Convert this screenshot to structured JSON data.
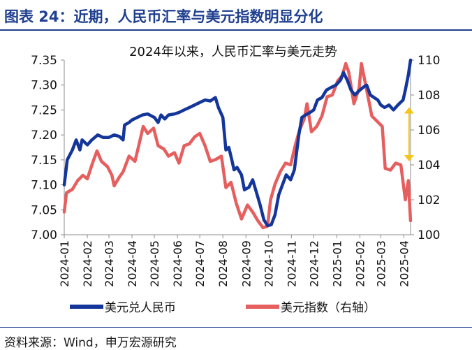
{
  "figure": {
    "title": "图表 24：近期，人民币汇率与美元指数明显分化",
    "source": "资料来源：Wind，申万宏源研究"
  },
  "chart_data": {
    "type": "line",
    "title": "2024年以来，人民币汇率与美元走势",
    "x_ticks": [
      "2024-01",
      "2024-02",
      "2024-03",
      "2024-04",
      "2024-05",
      "2024-06",
      "2024-07",
      "2024-08",
      "2024-09",
      "2024-10",
      "2024-11",
      "2024-12",
      "2025-01",
      "2025-02",
      "2025-03",
      "2025-04"
    ],
    "x_range": [
      "2024-01-01",
      "2025-04-10"
    ],
    "ylim_left": [
      7.0,
      7.35
    ],
    "yticks_left": [
      "7.00",
      "7.05",
      "7.10",
      "7.15",
      "7.20",
      "7.25",
      "7.30",
      "7.35"
    ],
    "ylim_right": [
      100,
      110
    ],
    "yticks_right": [
      "100",
      "102",
      "104",
      "106",
      "108",
      "110"
    ],
    "legend_position": "bottom",
    "annotation": {
      "type": "double-arrow",
      "date": "2025-04-08",
      "from": 104.2,
      "to": 107.3,
      "color": "#f5c518"
    },
    "series": [
      {
        "name": "美元兑人民币",
        "axis": "left",
        "color": "#14369a",
        "points": [
          [
            "2024-01-01",
            7.1
          ],
          [
            "2024-01-05",
            7.15
          ],
          [
            "2024-01-12",
            7.17
          ],
          [
            "2024-01-17",
            7.19
          ],
          [
            "2024-01-22",
            7.17
          ],
          [
            "2024-01-25",
            7.19
          ],
          [
            "2024-02-01",
            7.18
          ],
          [
            "2024-02-07",
            7.19
          ],
          [
            "2024-02-15",
            7.2
          ],
          [
            "2024-02-22",
            7.195
          ],
          [
            "2024-03-01",
            7.195
          ],
          [
            "2024-03-08",
            7.2
          ],
          [
            "2024-03-15",
            7.197
          ],
          [
            "2024-03-20",
            7.19
          ],
          [
            "2024-03-22",
            7.22
          ],
          [
            "2024-03-28",
            7.225
          ],
          [
            "2024-04-01",
            7.23
          ],
          [
            "2024-04-08",
            7.235
          ],
          [
            "2024-04-15",
            7.24
          ],
          [
            "2024-04-22",
            7.242
          ],
          [
            "2024-05-01",
            7.235
          ],
          [
            "2024-05-06",
            7.225
          ],
          [
            "2024-05-10",
            7.24
          ],
          [
            "2024-05-15",
            7.232
          ],
          [
            "2024-05-20",
            7.24
          ],
          [
            "2024-05-28",
            7.242
          ],
          [
            "2024-06-03",
            7.245
          ],
          [
            "2024-06-10",
            7.25
          ],
          [
            "2024-06-17",
            7.255
          ],
          [
            "2024-06-24",
            7.26
          ],
          [
            "2024-07-01",
            7.265
          ],
          [
            "2024-07-08",
            7.27
          ],
          [
            "2024-07-15",
            7.268
          ],
          [
            "2024-07-22",
            7.275
          ],
          [
            "2024-07-26",
            7.255
          ],
          [
            "2024-08-01",
            7.235
          ],
          [
            "2024-08-05",
            7.17
          ],
          [
            "2024-08-09",
            7.175
          ],
          [
            "2024-08-13",
            7.15
          ],
          [
            "2024-08-16",
            7.13
          ],
          [
            "2024-08-20",
            7.135
          ],
          [
            "2024-08-26",
            7.12
          ],
          [
            "2024-08-30",
            7.09
          ],
          [
            "2024-09-05",
            7.095
          ],
          [
            "2024-09-10",
            7.11
          ],
          [
            "2024-09-16",
            7.08
          ],
          [
            "2024-09-20",
            7.06
          ],
          [
            "2024-09-25",
            7.03
          ],
          [
            "2024-09-30",
            7.018
          ],
          [
            "2024-10-05",
            7.02
          ],
          [
            "2024-10-10",
            7.04
          ],
          [
            "2024-10-15",
            7.08
          ],
          [
            "2024-10-20",
            7.1
          ],
          [
            "2024-10-25",
            7.12
          ],
          [
            "2024-10-31",
            7.11
          ],
          [
            "2024-11-05",
            7.13
          ],
          [
            "2024-11-11",
            7.2
          ],
          [
            "2024-11-15",
            7.235
          ],
          [
            "2024-11-20",
            7.24
          ],
          [
            "2024-11-26",
            7.245
          ],
          [
            "2024-12-01",
            7.25
          ],
          [
            "2024-12-06",
            7.27
          ],
          [
            "2024-12-12",
            7.275
          ],
          [
            "2024-12-18",
            7.29
          ],
          [
            "2024-12-24",
            7.295
          ],
          [
            "2024-12-31",
            7.3
          ],
          [
            "2025-01-06",
            7.31
          ],
          [
            "2025-01-10",
            7.325
          ],
          [
            "2025-01-15",
            7.31
          ],
          [
            "2025-01-20",
            7.29
          ],
          [
            "2025-01-25",
            7.28
          ],
          [
            "2025-02-01",
            7.29
          ],
          [
            "2025-02-05",
            7.295
          ],
          [
            "2025-02-10",
            7.3
          ],
          [
            "2025-02-15",
            7.28
          ],
          [
            "2025-02-20",
            7.275
          ],
          [
            "2025-02-25",
            7.27
          ],
          [
            "2025-03-01",
            7.26
          ],
          [
            "2025-03-06",
            7.255
          ],
          [
            "2025-03-12",
            7.26
          ],
          [
            "2025-03-18",
            7.25
          ],
          [
            "2025-03-24",
            7.26
          ],
          [
            "2025-03-31",
            7.27
          ],
          [
            "2025-04-03",
            7.29
          ],
          [
            "2025-04-07",
            7.32
          ],
          [
            "2025-04-10",
            7.35
          ]
        ]
      },
      {
        "name": "美元指数（右轴）",
        "axis": "right",
        "color": "#e65f5f",
        "points": [
          [
            "2024-01-01",
            101.3
          ],
          [
            "2024-01-04",
            102.4
          ],
          [
            "2024-01-12",
            102.6
          ],
          [
            "2024-01-19",
            103.1
          ],
          [
            "2024-01-26",
            103.4
          ],
          [
            "2024-02-01",
            103.2
          ],
          [
            "2024-02-08",
            104.1
          ],
          [
            "2024-02-14",
            104.8
          ],
          [
            "2024-02-20",
            104.2
          ],
          [
            "2024-02-28",
            103.9
          ],
          [
            "2024-03-05",
            103.4
          ],
          [
            "2024-03-08",
            102.8
          ],
          [
            "2024-03-15",
            103.3
          ],
          [
            "2024-03-20",
            103.6
          ],
          [
            "2024-03-28",
            104.5
          ],
          [
            "2024-04-05",
            104.2
          ],
          [
            "2024-04-10",
            105.1
          ],
          [
            "2024-04-16",
            106.2
          ],
          [
            "2024-04-22",
            105.8
          ],
          [
            "2024-04-30",
            106.1
          ],
          [
            "2024-05-06",
            105.1
          ],
          [
            "2024-05-14",
            104.9
          ],
          [
            "2024-05-20",
            104.5
          ],
          [
            "2024-05-28",
            104.7
          ],
          [
            "2024-06-03",
            104.1
          ],
          [
            "2024-06-10",
            105.1
          ],
          [
            "2024-06-17",
            105.2
          ],
          [
            "2024-06-24",
            105.6
          ],
          [
            "2024-07-01",
            105.8
          ],
          [
            "2024-07-08",
            105.1
          ],
          [
            "2024-07-15",
            104.2
          ],
          [
            "2024-07-22",
            104.3
          ],
          [
            "2024-07-30",
            104.5
          ],
          [
            "2024-08-05",
            102.7
          ],
          [
            "2024-08-12",
            103.0
          ],
          [
            "2024-08-19",
            101.8
          ],
          [
            "2024-08-26",
            100.9
          ],
          [
            "2024-09-03",
            101.7
          ],
          [
            "2024-09-10",
            101.3
          ],
          [
            "2024-09-17",
            100.8
          ],
          [
            "2024-09-24",
            100.4
          ],
          [
            "2024-09-30",
            100.5
          ],
          [
            "2024-10-04",
            102.0
          ],
          [
            "2024-10-10",
            102.9
          ],
          [
            "2024-10-17",
            103.6
          ],
          [
            "2024-10-24",
            104.1
          ],
          [
            "2024-10-31",
            104.0
          ],
          [
            "2024-11-06",
            105.1
          ],
          [
            "2024-11-12",
            106.0
          ],
          [
            "2024-11-18",
            106.6
          ],
          [
            "2024-11-22",
            107.5
          ],
          [
            "2024-11-28",
            105.9
          ],
          [
            "2024-12-05",
            106.2
          ],
          [
            "2024-12-12",
            106.8
          ],
          [
            "2024-12-19",
            107.9
          ],
          [
            "2024-12-26",
            108.0
          ],
          [
            "2025-01-02",
            108.8
          ],
          [
            "2025-01-08",
            109.1
          ],
          [
            "2025-01-13",
            109.8
          ],
          [
            "2025-01-17",
            109.3
          ],
          [
            "2025-01-24",
            107.5
          ],
          [
            "2025-01-31",
            108.4
          ],
          [
            "2025-02-03",
            109.8
          ],
          [
            "2025-02-10",
            108.3
          ],
          [
            "2025-02-17",
            106.8
          ],
          [
            "2025-02-24",
            106.5
          ],
          [
            "2025-03-03",
            106.2
          ],
          [
            "2025-03-07",
            103.8
          ],
          [
            "2025-03-14",
            103.7
          ],
          [
            "2025-03-21",
            104.1
          ],
          [
            "2025-03-28",
            104.0
          ],
          [
            "2025-04-03",
            102.0
          ],
          [
            "2025-04-07",
            103.1
          ],
          [
            "2025-04-10",
            100.8
          ]
        ]
      }
    ]
  }
}
